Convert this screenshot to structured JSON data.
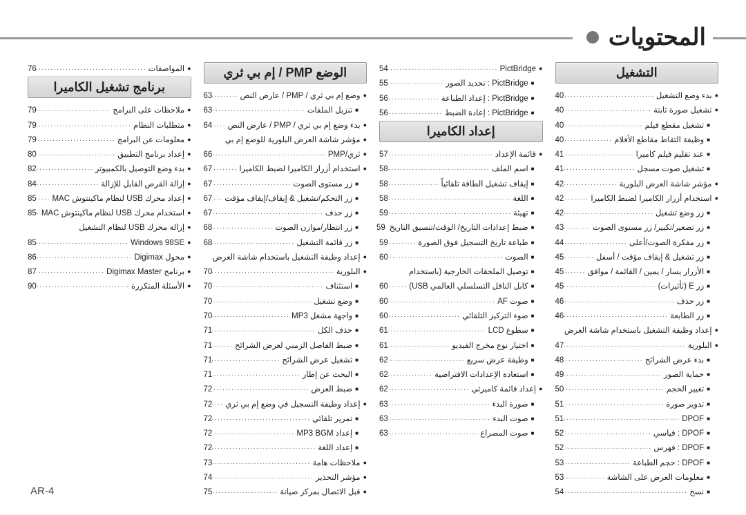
{
  "page_title": "المحتويات",
  "page_number": "AR-4",
  "columns": [
    {
      "items": [
        {
          "type": "header",
          "text": "التشغيل"
        },
        {
          "type": "entry",
          "level": 0,
          "label": "بدء وضع التشغيل",
          "page": "40"
        },
        {
          "type": "entry",
          "level": 0,
          "label": "تشغيل صورة ثابتة",
          "page": "40"
        },
        {
          "type": "entry",
          "level": 1,
          "label": "تشغيل مقطع فيلم",
          "page": "40"
        },
        {
          "type": "entry",
          "level": 1,
          "label": "وظيفة التقاط مقاطع الأفلام",
          "page": "40"
        },
        {
          "type": "entry",
          "level": 1,
          "label": "عند تقليم فيلم كاميرا",
          "page": "41"
        },
        {
          "type": "entry",
          "level": 1,
          "label": "تشغيل صوت مسجل",
          "page": "41"
        },
        {
          "type": "entry",
          "level": 0,
          "label": "مؤشر شاشة العرض البلورية",
          "page": "42"
        },
        {
          "type": "entry",
          "level": 0,
          "label": "استخدام أزرار الكاميرا لضبط الكاميرا",
          "page": "42"
        },
        {
          "type": "entry",
          "level": 1,
          "label": "زر وضع تشغيل",
          "page": "42"
        },
        {
          "type": "entry",
          "level": 1,
          "label": "زر تصغير/تكبير/ زر مستوى الصوت",
          "page": "43"
        },
        {
          "type": "entry",
          "level": 1,
          "label": "زر مفكرة الصوت/أعلى",
          "page": "44"
        },
        {
          "type": "entry",
          "level": 1,
          "label": "زر تشغيل & إيقاف مؤقت / أسفل",
          "page": "45"
        },
        {
          "type": "entry",
          "level": 1,
          "label": "الأزرار يسار / يمين / القائمة / موافق",
          "page": "45"
        },
        {
          "type": "entry",
          "level": 1,
          "label": "زر E (تأثيرات)",
          "page": "45"
        },
        {
          "type": "entry",
          "level": 1,
          "label": "زر حذف",
          "page": "46"
        },
        {
          "type": "entry",
          "level": 1,
          "label": "زر الطابعة",
          "page": "46"
        },
        {
          "type": "entry",
          "level": 0,
          "label": "إعداد وظيفة التشغيل باستخدام شاشة العرض",
          "page": ""
        },
        {
          "type": "entry",
          "level": 0,
          "label": "البلورية",
          "page": "47"
        },
        {
          "type": "entry",
          "level": 1,
          "label": "بدء عرض الشرائح",
          "page": "48"
        },
        {
          "type": "entry",
          "level": 1,
          "label": "حماية الصور",
          "page": "49"
        },
        {
          "type": "entry",
          "level": 1,
          "label": "تغيير الحجم",
          "page": "50"
        },
        {
          "type": "entry",
          "level": 1,
          "label": "تدوير صورة",
          "page": "51"
        },
        {
          "type": "entry",
          "level": 1,
          "label": "DPOF",
          "page": "51"
        },
        {
          "type": "entry",
          "level": 1,
          "label": "DPOF : قياسي",
          "page": "52"
        },
        {
          "type": "entry",
          "level": 1,
          "label": "DPOF : فهرس",
          "page": "52"
        },
        {
          "type": "entry",
          "level": 1,
          "label": "DPOF : حجم الطباعة",
          "page": "53"
        },
        {
          "type": "entry",
          "level": 1,
          "label": "معلومات العرض على الشاشة",
          "page": "53"
        },
        {
          "type": "entry",
          "level": 1,
          "label": "نسخ",
          "page": "54"
        }
      ]
    },
    {
      "items": [
        {
          "type": "entry",
          "level": 0,
          "label": "PictBridge",
          "page": "54"
        },
        {
          "type": "entry",
          "level": 1,
          "label": "PictBridge : تحديد الصور",
          "page": "55"
        },
        {
          "type": "entry",
          "level": 1,
          "label": "PictBridge : إعداد الطباعة",
          "page": "56"
        },
        {
          "type": "entry",
          "level": 1,
          "label": "PictBridge : إعادة الضبط",
          "page": "56"
        },
        {
          "type": "header",
          "text": "إعداد الكاميرا"
        },
        {
          "type": "entry",
          "level": 0,
          "label": "قائمة الإعداد",
          "page": "57"
        },
        {
          "type": "entry",
          "level": 1,
          "label": "اسم الملف",
          "page": "58"
        },
        {
          "type": "entry",
          "level": 1,
          "label": "إيقاف تشغيل الطاقة تلقائياً",
          "page": "58"
        },
        {
          "type": "entry",
          "level": 1,
          "label": "اللغة",
          "page": "58"
        },
        {
          "type": "entry",
          "level": 1,
          "label": "تهيئة",
          "page": "59"
        },
        {
          "type": "entry",
          "level": 1,
          "label": "ضبط إعدادات التاريخ/ الوقت/تنسيق التاريخ",
          "page": "59"
        },
        {
          "type": "entry",
          "level": 1,
          "label": "طباعة تاريخ التسجيل فوق الصورة",
          "page": "59"
        },
        {
          "type": "entry",
          "level": 1,
          "label": "الصوت",
          "page": "60"
        },
        {
          "type": "entry",
          "level": 1,
          "label": "توصيل الملحقات الخارجية (باستخدام",
          "page": ""
        },
        {
          "type": "entry",
          "level": 1,
          "label": "كابل الناقل التسلسلي العالمي USB)",
          "page": "60"
        },
        {
          "type": "entry",
          "level": 1,
          "label": "صوت AF",
          "page": "60"
        },
        {
          "type": "entry",
          "level": 1,
          "label": "ضوء التركيز التلقائي",
          "page": "60"
        },
        {
          "type": "entry",
          "level": 1,
          "label": "سطوع LCD",
          "page": "61"
        },
        {
          "type": "entry",
          "level": 1,
          "label": "اختيار نوع مخرج الفيديو",
          "page": "61"
        },
        {
          "type": "entry",
          "level": 1,
          "label": "وظيفة عرض سريع",
          "page": "62"
        },
        {
          "type": "entry",
          "level": 1,
          "label": "استعادة الإعدادات الافتراضية",
          "page": "62"
        },
        {
          "type": "entry",
          "level": 0,
          "label": "إعداد قائمة كاميرتي",
          "page": "62"
        },
        {
          "type": "entry",
          "level": 1,
          "label": "صورة البدء",
          "page": "63"
        },
        {
          "type": "entry",
          "level": 1,
          "label": "صوت البدء",
          "page": "63"
        },
        {
          "type": "entry",
          "level": 1,
          "label": "صوت المصراع",
          "page": "63"
        }
      ]
    },
    {
      "items": [
        {
          "type": "header",
          "text": "الوضع PMP / إم بي ثري"
        },
        {
          "type": "entry",
          "level": 0,
          "label": "وضع إم بي ثري / PMP / عارض النص",
          "page": "63"
        },
        {
          "type": "entry",
          "level": 1,
          "label": "تنزيل الملفات",
          "page": "63"
        },
        {
          "type": "entry",
          "level": 0,
          "label": "بدء وضع إم بي ثري / PMP / عارض النص",
          "page": "64"
        },
        {
          "type": "entry",
          "level": 0,
          "label": "مؤشر شاشة العرض البلورية للوضع إم بي",
          "page": ""
        },
        {
          "type": "entry",
          "level": 0,
          "label": "ثري/PMP",
          "page": "66"
        },
        {
          "type": "entry",
          "level": 0,
          "label": "استخدام أزرار الكاميرا لضبط الكاميرا",
          "page": "67"
        },
        {
          "type": "entry",
          "level": 1,
          "label": "زر مستوى الصوت",
          "page": "67"
        },
        {
          "type": "entry",
          "level": 1,
          "label": "زر التحكم/تشغيل & إيقاف/إيقاف مؤقت",
          "page": "67"
        },
        {
          "type": "entry",
          "level": 1,
          "label": "زر حذف",
          "page": "67"
        },
        {
          "type": "entry",
          "level": 1,
          "label": "زر انتظار/موازن الصوت",
          "page": "68"
        },
        {
          "type": "entry",
          "level": 1,
          "label": "زر قائمة التشغيل",
          "page": "68"
        },
        {
          "type": "entry",
          "level": 0,
          "label": "إعداد وظيفة التشغيل باستخدام شاشة العرض",
          "page": ""
        },
        {
          "type": "entry",
          "level": 0,
          "label": "البلورية",
          "page": "70"
        },
        {
          "type": "entry",
          "level": 1,
          "label": "استئناف",
          "page": "70"
        },
        {
          "type": "entry",
          "level": 1,
          "label": "وضع تشغيل",
          "page": "70"
        },
        {
          "type": "entry",
          "level": 1,
          "label": "واجهة مشغل MP3",
          "page": "70"
        },
        {
          "type": "entry",
          "level": 1,
          "label": "حذف الكل",
          "page": "71"
        },
        {
          "type": "entry",
          "level": 1,
          "label": "ضبط الفاصل الزمني لعرض الشرائح",
          "page": "71"
        },
        {
          "type": "entry",
          "level": 1,
          "label": "تشغيل عرض الشرائح",
          "page": "71"
        },
        {
          "type": "entry",
          "level": 1,
          "label": "البحث عن إطار",
          "page": "71"
        },
        {
          "type": "entry",
          "level": 1,
          "label": "ضبط العرض",
          "page": "72"
        },
        {
          "type": "entry",
          "level": 0,
          "label": "إعداد وظيفة التسجيل في وضع إم بي ثري",
          "page": "72"
        },
        {
          "type": "entry",
          "level": 1,
          "label": "تمرير تلقائي",
          "page": "72"
        },
        {
          "type": "entry",
          "level": 1,
          "label": "إعداد MP3 BGM",
          "page": "72"
        },
        {
          "type": "entry",
          "level": 1,
          "label": "إعداد اللغة",
          "page": "72"
        },
        {
          "type": "entry",
          "level": 0,
          "label": "ملاحظات هامة",
          "page": "73"
        },
        {
          "type": "entry",
          "level": 0,
          "label": "مؤشر التحذير",
          "page": "74"
        },
        {
          "type": "entry",
          "level": 0,
          "label": "قبل الاتصال بمركز صيانة",
          "page": "75"
        }
      ]
    },
    {
      "items": [
        {
          "type": "entry",
          "level": 0,
          "label": "المواصفات",
          "page": "76"
        },
        {
          "type": "header",
          "text": "برنامج تشغيل الكاميرا"
        },
        {
          "type": "entry",
          "level": 0,
          "label": "ملاحظات على البرامج",
          "page": "79"
        },
        {
          "type": "entry",
          "level": 0,
          "label": "متطلبات النظام",
          "page": "79"
        },
        {
          "type": "entry",
          "level": 0,
          "label": "معلومات عن البرامج",
          "page": "79"
        },
        {
          "type": "entry",
          "level": 0,
          "label": "إعداد برنامج التطبيق",
          "page": "80"
        },
        {
          "type": "entry",
          "level": 0,
          "label": "بدء وضع التوصيل بالكمبيوتر",
          "page": "82"
        },
        {
          "type": "entry",
          "level": 0,
          "label": "إزالة القرص القابل للإزالة",
          "page": "84"
        },
        {
          "type": "entry",
          "level": 0,
          "label": "إعداد محرك USB لنظام ماكينتوش MAC",
          "page": "85"
        },
        {
          "type": "entry",
          "level": 0,
          "label": "استخدام محرك USB لنظام ماكينتوش MAC",
          "page": "85"
        },
        {
          "type": "entry",
          "level": 0,
          "label": "إزالة محرك USB لنظام التشغيل",
          "page": ""
        },
        {
          "type": "entry",
          "level": 0,
          "label": "Windows 98SE",
          "page": "85"
        },
        {
          "type": "entry",
          "level": 0,
          "label": "محول Digimax",
          "page": "86"
        },
        {
          "type": "entry",
          "level": 0,
          "label": "برنامج Digimax Master",
          "page": "87"
        },
        {
          "type": "entry",
          "level": 0,
          "label": "الأسئلة المتكررة",
          "page": "90"
        }
      ]
    }
  ]
}
